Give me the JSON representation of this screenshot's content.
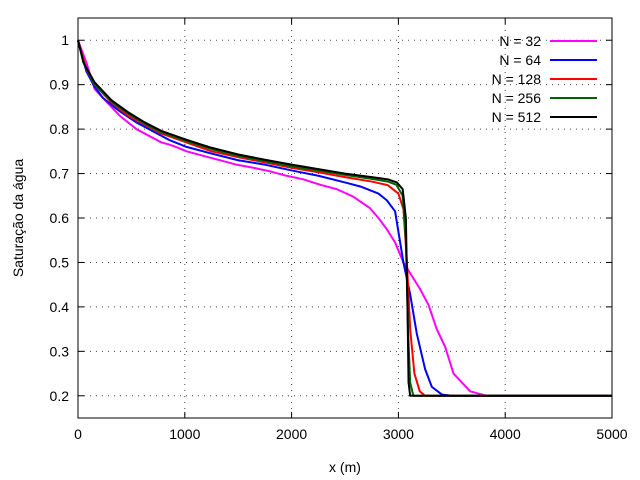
{
  "chart_data": {
    "type": "line",
    "xlabel": "x (m)",
    "ylabel": "Saturação da água",
    "xlim": [
      0,
      5000
    ],
    "ylim": [
      0.15,
      1.05
    ],
    "xticks": [
      0,
      1000,
      2000,
      3000,
      4000,
      5000
    ],
    "yticks": [
      0.2,
      0.3,
      0.4,
      0.5,
      0.6,
      0.7,
      0.8,
      0.9,
      1
    ],
    "grid": true,
    "legend_position": "top-right",
    "series": [
      {
        "name": "N = 32",
        "color": "#ff00ff",
        "points": [
          [
            0,
            1
          ],
          [
            78,
            0.95
          ],
          [
            156,
            0.89
          ],
          [
            234,
            0.87
          ],
          [
            313,
            0.85
          ],
          [
            391,
            0.83
          ],
          [
            469,
            0.815
          ],
          [
            547,
            0.8
          ],
          [
            625,
            0.79
          ],
          [
            703,
            0.78
          ],
          [
            781,
            0.77
          ],
          [
            859,
            0.765
          ],
          [
            938,
            0.758
          ],
          [
            1016,
            0.75
          ],
          [
            1172,
            0.74
          ],
          [
            1328,
            0.73
          ],
          [
            1484,
            0.72
          ],
          [
            1641,
            0.713
          ],
          [
            1797,
            0.705
          ],
          [
            1953,
            0.695
          ],
          [
            2109,
            0.687
          ],
          [
            2266,
            0.675
          ],
          [
            2422,
            0.665
          ],
          [
            2578,
            0.648
          ],
          [
            2734,
            0.622
          ],
          [
            2813,
            0.6
          ],
          [
            2891,
            0.575
          ],
          [
            2969,
            0.545
          ],
          [
            3047,
            0.5
          ],
          [
            3125,
            0.47
          ],
          [
            3203,
            0.44
          ],
          [
            3281,
            0.405
          ],
          [
            3359,
            0.35
          ],
          [
            3438,
            0.31
          ],
          [
            3516,
            0.25
          ],
          [
            3594,
            0.23
          ],
          [
            3672,
            0.21
          ],
          [
            3750,
            0.205
          ],
          [
            3828,
            0.2
          ],
          [
            4000,
            0.2
          ],
          [
            5000,
            0.2
          ]
        ]
      },
      {
        "name": "N = 64",
        "color": "#0000ff",
        "points": [
          [
            0,
            1
          ],
          [
            78,
            0.93
          ],
          [
            156,
            0.895
          ],
          [
            234,
            0.87
          ],
          [
            313,
            0.855
          ],
          [
            391,
            0.84
          ],
          [
            547,
            0.815
          ],
          [
            703,
            0.795
          ],
          [
            859,
            0.775
          ],
          [
            1016,
            0.76
          ],
          [
            1250,
            0.745
          ],
          [
            1500,
            0.73
          ],
          [
            1750,
            0.72
          ],
          [
            2000,
            0.707
          ],
          [
            2250,
            0.695
          ],
          [
            2500,
            0.68
          ],
          [
            2656,
            0.67
          ],
          [
            2813,
            0.655
          ],
          [
            2891,
            0.64
          ],
          [
            2969,
            0.615
          ],
          [
            3047,
            0.5
          ],
          [
            3109,
            0.43
          ],
          [
            3172,
            0.34
          ],
          [
            3250,
            0.26
          ],
          [
            3313,
            0.22
          ],
          [
            3406,
            0.203
          ],
          [
            3500,
            0.2
          ],
          [
            5000,
            0.2
          ]
        ]
      },
      {
        "name": "N = 128",
        "color": "#ff0000",
        "points": [
          [
            0,
            1
          ],
          [
            78,
            0.935
          ],
          [
            156,
            0.9
          ],
          [
            313,
            0.86
          ],
          [
            469,
            0.83
          ],
          [
            625,
            0.81
          ],
          [
            781,
            0.79
          ],
          [
            1016,
            0.77
          ],
          [
            1250,
            0.75
          ],
          [
            1500,
            0.737
          ],
          [
            1750,
            0.725
          ],
          [
            2000,
            0.713
          ],
          [
            2250,
            0.703
          ],
          [
            2500,
            0.692
          ],
          [
            2750,
            0.682
          ],
          [
            2900,
            0.674
          ],
          [
            3000,
            0.655
          ],
          [
            3047,
            0.62
          ],
          [
            3080,
            0.5
          ],
          [
            3110,
            0.35
          ],
          [
            3150,
            0.25
          ],
          [
            3200,
            0.21
          ],
          [
            3250,
            0.2
          ],
          [
            5000,
            0.2
          ]
        ]
      },
      {
        "name": "N = 256",
        "color": "#006400",
        "points": [
          [
            0,
            1
          ],
          [
            60,
            0.945
          ],
          [
            156,
            0.9
          ],
          [
            313,
            0.862
          ],
          [
            469,
            0.835
          ],
          [
            625,
            0.812
          ],
          [
            781,
            0.793
          ],
          [
            1016,
            0.773
          ],
          [
            1250,
            0.755
          ],
          [
            1500,
            0.74
          ],
          [
            1750,
            0.728
          ],
          [
            2000,
            0.716
          ],
          [
            2250,
            0.707
          ],
          [
            2500,
            0.697
          ],
          [
            2750,
            0.688
          ],
          [
            2900,
            0.682
          ],
          [
            2980,
            0.675
          ],
          [
            3040,
            0.65
          ],
          [
            3070,
            0.55
          ],
          [
            3090,
            0.35
          ],
          [
            3110,
            0.23
          ],
          [
            3140,
            0.2
          ],
          [
            5000,
            0.2
          ]
        ]
      },
      {
        "name": "N = 512",
        "color": "#000000",
        "points": [
          [
            0,
            1
          ],
          [
            50,
            0.95
          ],
          [
            156,
            0.905
          ],
          [
            313,
            0.865
          ],
          [
            469,
            0.838
          ],
          [
            625,
            0.815
          ],
          [
            781,
            0.796
          ],
          [
            1016,
            0.776
          ],
          [
            1250,
            0.758
          ],
          [
            1500,
            0.743
          ],
          [
            1750,
            0.731
          ],
          [
            2000,
            0.72
          ],
          [
            2250,
            0.71
          ],
          [
            2500,
            0.7
          ],
          [
            2750,
            0.692
          ],
          [
            2900,
            0.687
          ],
          [
            2985,
            0.68
          ],
          [
            3040,
            0.665
          ],
          [
            3070,
            0.6
          ],
          [
            3085,
            0.4
          ],
          [
            3095,
            0.23
          ],
          [
            3110,
            0.2
          ],
          [
            5000,
            0.2
          ]
        ]
      }
    ]
  }
}
